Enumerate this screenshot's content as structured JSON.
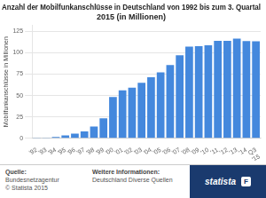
{
  "chart_data": {
    "type": "bar",
    "title": "Anzahl der Mobilfunkanschlüsse in Deutschland von 1992 bis zum 3. Quartal\n2015 (in Millionen)",
    "ylabel": "Mobilfunkanschlüsse in Millionen",
    "categories": [
      "'92",
      "'93",
      "'94",
      "'95",
      "'96",
      "'97",
      "'98",
      "'99",
      "'00",
      "'01",
      "'02",
      "'03",
      "'04",
      "'05",
      "'06",
      "'07",
      "'08",
      "'09",
      "'10",
      "'11",
      "'12",
      "'13",
      "'14",
      "Q3\n'15"
    ],
    "values": [
      0.2,
      0.8,
      1.5,
      3.5,
      5.5,
      8.2,
      13.9,
      23.3,
      48.2,
      56.2,
      59.2,
      64.8,
      71.3,
      77.2,
      85.7,
      97.2,
      107.2,
      107.8,
      108.7,
      114.0,
      114.0,
      116.5,
      113.6,
      113.5
    ],
    "color": "#4488dd",
    "ylim": [
      0,
      132
    ],
    "yticks": [
      0,
      25,
      50,
      75,
      100,
      125
    ],
    "grid": true,
    "annotations": [
      "Quelle:",
      "Bundesnetzagentur\n© Statista 2015",
      "Weitere Informationen:",
      "Deutschland Diverse Quellen",
      "statista",
      "F"
    ]
  }
}
